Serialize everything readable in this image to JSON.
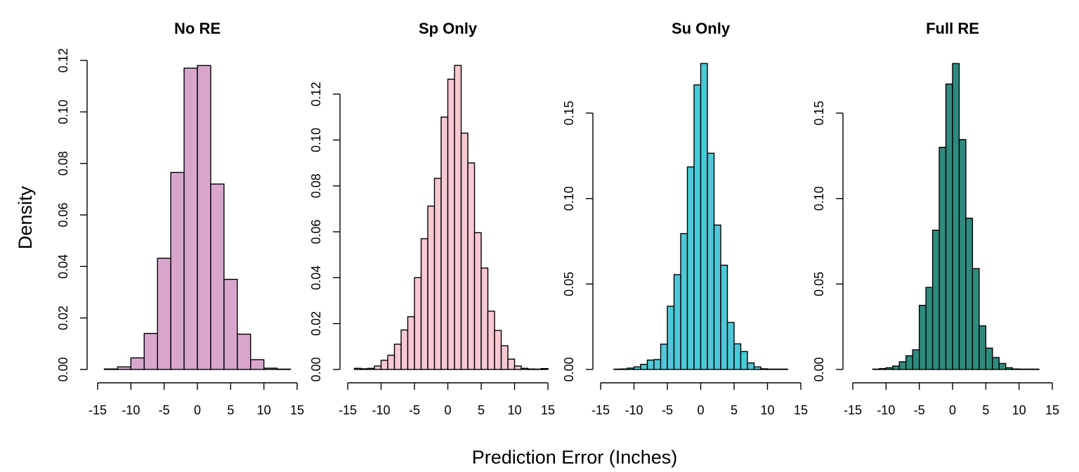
{
  "figure": {
    "ylabel": "Density",
    "xlabel": "Prediction Error (Inches)"
  },
  "chart_data": [
    {
      "type": "bar",
      "title": "No RE",
      "color": "#d8a6cd",
      "ylim": [
        0,
        0.12
      ],
      "yticks": [
        "0.00",
        "0.02",
        "0.04",
        "0.06",
        "0.08",
        "0.10",
        "0.12"
      ],
      "xlim": [
        -15,
        15
      ],
      "xticks": [
        "-15",
        "-10",
        "-5",
        "0",
        "5",
        "10",
        "15"
      ],
      "bins": [
        {
          "x0": -14,
          "x1": -12,
          "density": 0.0002
        },
        {
          "x0": -12,
          "x1": -10,
          "density": 0.001
        },
        {
          "x0": -10,
          "x1": -8,
          "density": 0.0045
        },
        {
          "x0": -8,
          "x1": -6,
          "density": 0.014
        },
        {
          "x0": -6,
          "x1": -4,
          "density": 0.0432
        },
        {
          "x0": -4,
          "x1": -2,
          "density": 0.0765
        },
        {
          "x0": -2,
          "x1": 0,
          "density": 0.117
        },
        {
          "x0": 0,
          "x1": 2,
          "density": 0.118
        },
        {
          "x0": 2,
          "x1": 4,
          "density": 0.072
        },
        {
          "x0": 4,
          "x1": 6,
          "density": 0.035
        },
        {
          "x0": 6,
          "x1": 8,
          "density": 0.0137
        },
        {
          "x0": 8,
          "x1": 10,
          "density": 0.0038
        },
        {
          "x0": 10,
          "x1": 12,
          "density": 0.0005
        },
        {
          "x0": 12,
          "x1": 14,
          "density": 0.0001
        }
      ]
    },
    {
      "type": "bar",
      "title": "Sp Only",
      "color": "#f9c9d1",
      "ylim": [
        0,
        0.12
      ],
      "yticks": [
        "0.00",
        "0.02",
        "0.04",
        "0.06",
        "0.08",
        "0.10",
        "0.12"
      ],
      "xlim": [
        -15,
        15
      ],
      "xticks": [
        "-15",
        "-10",
        "-5",
        "0",
        "5",
        "10",
        "15"
      ],
      "bins": [
        {
          "x0": -14,
          "x1": -13,
          "density": 0.0005
        },
        {
          "x0": -13,
          "x1": -12,
          "density": 0.0003
        },
        {
          "x0": -12,
          "x1": -11,
          "density": 0.0005
        },
        {
          "x0": -11,
          "x1": -10,
          "density": 0.0015
        },
        {
          "x0": -10,
          "x1": -9,
          "density": 0.004
        },
        {
          "x0": -9,
          "x1": -8,
          "density": 0.0062
        },
        {
          "x0": -8,
          "x1": -7,
          "density": 0.011
        },
        {
          "x0": -7,
          "x1": -6,
          "density": 0.0172
        },
        {
          "x0": -6,
          "x1": -5,
          "density": 0.023
        },
        {
          "x0": -5,
          "x1": -4,
          "density": 0.04
        },
        {
          "x0": -4,
          "x1": -3,
          "density": 0.057
        },
        {
          "x0": -3,
          "x1": -2,
          "density": 0.0712
        },
        {
          "x0": -2,
          "x1": -1,
          "density": 0.0833
        },
        {
          "x0": -1,
          "x1": 0,
          "density": 0.11
        },
        {
          "x0": 0,
          "x1": 1,
          "density": 0.1265
        },
        {
          "x0": 1,
          "x1": 2,
          "density": 0.1325
        },
        {
          "x0": 2,
          "x1": 3,
          "density": 0.103
        },
        {
          "x0": 3,
          "x1": 4,
          "density": 0.09
        },
        {
          "x0": 4,
          "x1": 5,
          "density": 0.0596
        },
        {
          "x0": 5,
          "x1": 6,
          "density": 0.0442
        },
        {
          "x0": 6,
          "x1": 7,
          "density": 0.0254
        },
        {
          "x0": 7,
          "x1": 8,
          "density": 0.017
        },
        {
          "x0": 8,
          "x1": 9,
          "density": 0.0103
        },
        {
          "x0": 9,
          "x1": 10,
          "density": 0.0045
        },
        {
          "x0": 10,
          "x1": 11,
          "density": 0.0015
        },
        {
          "x0": 11,
          "x1": 12,
          "density": 0.0005
        },
        {
          "x0": 12,
          "x1": 13,
          "density": 0.0002
        },
        {
          "x0": 13,
          "x1": 14,
          "density": 0.0001
        },
        {
          "x0": 14,
          "x1": 15,
          "density": 0.0004
        }
      ]
    },
    {
      "type": "bar",
      "title": "Su Only",
      "color": "#4ec8d8",
      "ylim": [
        0,
        0.15
      ],
      "yticks": [
        "0.00",
        "0.05",
        "0.10",
        "0.15"
      ],
      "xlim": [
        -15,
        15
      ],
      "xticks": [
        "-15",
        "-10",
        "-5",
        "0",
        "5",
        "10",
        "15"
      ],
      "bins": [
        {
          "x0": -13,
          "x1": -12,
          "density": 0.0002
        },
        {
          "x0": -12,
          "x1": -11,
          "density": 0.0003
        },
        {
          "x0": -11,
          "x1": -10,
          "density": 0.0008
        },
        {
          "x0": -10,
          "x1": -9,
          "density": 0.0015
        },
        {
          "x0": -9,
          "x1": -8,
          "density": 0.003
        },
        {
          "x0": -8,
          "x1": -7,
          "density": 0.0055
        },
        {
          "x0": -7,
          "x1": -6,
          "density": 0.0058
        },
        {
          "x0": -6,
          "x1": -5,
          "density": 0.0148
        },
        {
          "x0": -5,
          "x1": -4,
          "density": 0.037
        },
        {
          "x0": -4,
          "x1": -3,
          "density": 0.0555
        },
        {
          "x0": -3,
          "x1": -2,
          "density": 0.0795
        },
        {
          "x0": -2,
          "x1": -1,
          "density": 0.1185
        },
        {
          "x0": -1,
          "x1": 0,
          "density": 0.1665
        },
        {
          "x0": 0,
          "x1": 1,
          "density": 0.179
        },
        {
          "x0": 1,
          "x1": 2,
          "density": 0.1265
        },
        {
          "x0": 2,
          "x1": 3,
          "density": 0.0845
        },
        {
          "x0": 3,
          "x1": 4,
          "density": 0.061
        },
        {
          "x0": 4,
          "x1": 5,
          "density": 0.0275
        },
        {
          "x0": 5,
          "x1": 6,
          "density": 0.015
        },
        {
          "x0": 6,
          "x1": 7,
          "density": 0.0105
        },
        {
          "x0": 7,
          "x1": 8,
          "density": 0.0038
        },
        {
          "x0": 8,
          "x1": 9,
          "density": 0.0015
        },
        {
          "x0": 9,
          "x1": 10,
          "density": 0.0004
        },
        {
          "x0": 10,
          "x1": 11,
          "density": 0.0002
        },
        {
          "x0": 11,
          "x1": 12,
          "density": 0.0001
        },
        {
          "x0": 12,
          "x1": 13,
          "density": 0.0001
        }
      ]
    },
    {
      "type": "bar",
      "title": "Full RE",
      "color": "#2e8b7e",
      "ylim": [
        0,
        0.15
      ],
      "yticks": [
        "0.00",
        "0.05",
        "0.10",
        "0.15"
      ],
      "xlim": [
        -15,
        15
      ],
      "xticks": [
        "-15",
        "-10",
        "-5",
        "0",
        "5",
        "10",
        "15"
      ],
      "bins": [
        {
          "x0": -12,
          "x1": -11,
          "density": 0.0002
        },
        {
          "x0": -11,
          "x1": -10,
          "density": 0.0005
        },
        {
          "x0": -10,
          "x1": -9,
          "density": 0.001
        },
        {
          "x0": -9,
          "x1": -8,
          "density": 0.002
        },
        {
          "x0": -8,
          "x1": -7,
          "density": 0.0045
        },
        {
          "x0": -7,
          "x1": -6,
          "density": 0.008
        },
        {
          "x0": -6,
          "x1": -5,
          "density": 0.0115
        },
        {
          "x0": -5,
          "x1": -4,
          "density": 0.0375
        },
        {
          "x0": -4,
          "x1": -3,
          "density": 0.048
        },
        {
          "x0": -3,
          "x1": -2,
          "density": 0.0815
        },
        {
          "x0": -2,
          "x1": -1,
          "density": 0.13
        },
        {
          "x0": -1,
          "x1": 0,
          "density": 0.167
        },
        {
          "x0": 0,
          "x1": 1,
          "density": 0.179
        },
        {
          "x0": 1,
          "x1": 2,
          "density": 0.1345
        },
        {
          "x0": 2,
          "x1": 3,
          "density": 0.0885
        },
        {
          "x0": 3,
          "x1": 4,
          "density": 0.059
        },
        {
          "x0": 4,
          "x1": 5,
          "density": 0.0255
        },
        {
          "x0": 5,
          "x1": 6,
          "density": 0.0125
        },
        {
          "x0": 6,
          "x1": 7,
          "density": 0.007
        },
        {
          "x0": 7,
          "x1": 8,
          "density": 0.0035
        },
        {
          "x0": 8,
          "x1": 9,
          "density": 0.001
        },
        {
          "x0": 9,
          "x1": 10,
          "density": 0.0003
        },
        {
          "x0": 10,
          "x1": 11,
          "density": 0.0002
        },
        {
          "x0": 11,
          "x1": 12,
          "density": 0.0001
        },
        {
          "x0": 12,
          "x1": 13,
          "density": 0.0001
        }
      ]
    }
  ]
}
